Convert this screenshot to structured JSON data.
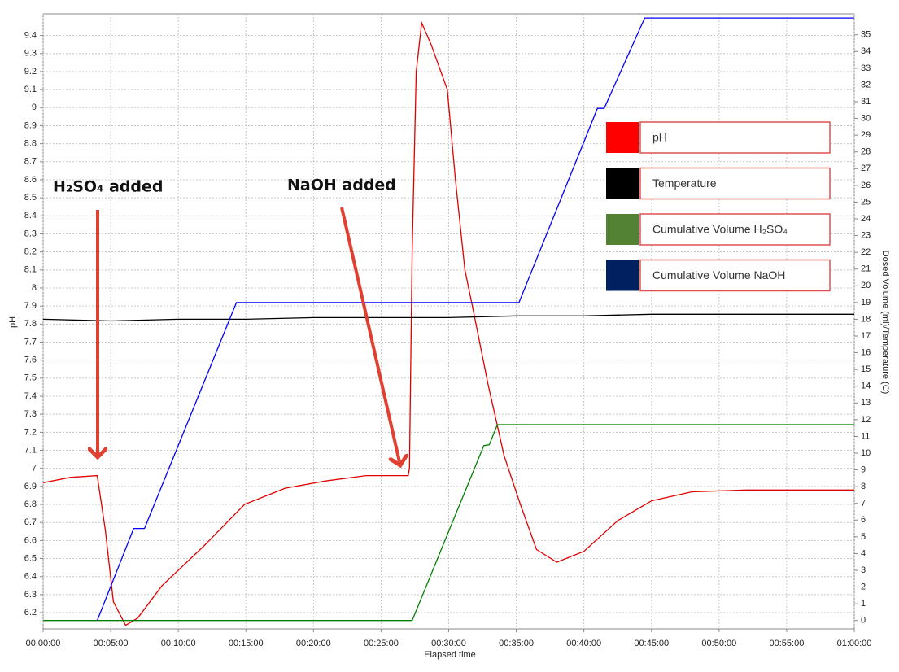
{
  "chart_data": {
    "type": "line",
    "x_label": "Elapsed time",
    "y_label": "pH",
    "y2_label": "Dosed Volume (ml)/Temperature (C)",
    "annotations": [
      "H₂SO₄ added",
      "NaOH added"
    ],
    "xlim": [
      0,
      60
    ],
    "xticks": [
      {
        "value": 0,
        "label": "00:00:00"
      },
      {
        "value": 5,
        "label": "00:05:00"
      },
      {
        "value": 10,
        "label": "00:10:00"
      },
      {
        "value": 15,
        "label": "00:15:00"
      },
      {
        "value": 20,
        "label": "00:20:00"
      },
      {
        "value": 25,
        "label": "00:25:00"
      },
      {
        "value": 30,
        "label": "00:30:00"
      },
      {
        "value": 35,
        "label": "00:35:00"
      },
      {
        "value": 40,
        "label": "00:40:00"
      },
      {
        "value": 45,
        "label": "00:45:00"
      },
      {
        "value": 50,
        "label": "00:50:00"
      },
      {
        "value": 55,
        "label": "00:55:00"
      },
      {
        "value": 60,
        "label": "01:00:00"
      }
    ],
    "ylim": [
      6.11,
      9.52
    ],
    "yticks": [
      6.2,
      6.3,
      6.4,
      6.5,
      6.6,
      6.7,
      6.8,
      6.9,
      7,
      7.1,
      7.2,
      7.3,
      7.4,
      7.5,
      7.6,
      7.7,
      7.8,
      7.9,
      8,
      8.1,
      8.2,
      8.3,
      8.4,
      8.5,
      8.6,
      8.7,
      8.8,
      8.9,
      9,
      9.1,
      9.2,
      9.3,
      9.4
    ],
    "y2lim": [
      -0.5,
      36.25
    ],
    "y2ticks": [
      0,
      1,
      2,
      3,
      4,
      5,
      6,
      7,
      8,
      9,
      10,
      11,
      12,
      13,
      14,
      15,
      16,
      17,
      18,
      19,
      20,
      21,
      22,
      23,
      24,
      25,
      26,
      27,
      28,
      29,
      30,
      31,
      32,
      33,
      34,
      35
    ],
    "grid": true,
    "series": [
      {
        "name": "pH",
        "color": "#e00000",
        "legend_color": "#ff0000",
        "x": [
          0,
          2,
          4.0,
          4.6,
          5.2,
          6.1,
          7,
          8.8,
          11.9,
          14.9,
          17.9,
          20.9,
          23.9,
          27.0,
          27.1,
          27.3,
          27.6,
          28,
          28.7,
          29.9,
          30.5,
          31.2,
          31.7,
          32.9,
          34.1,
          35.3,
          36.5,
          38,
          40,
          42.5,
          45,
          48,
          52,
          60
        ],
        "values": [
          6.92,
          6.95,
          6.96,
          6.66,
          6.26,
          6.13,
          6.17,
          6.35,
          6.57,
          6.8,
          6.89,
          6.93,
          6.96,
          6.96,
          7.0,
          8.2,
          9.2,
          9.47,
          9.35,
          9.1,
          8.6,
          8.1,
          7.92,
          7.47,
          7.07,
          6.8,
          6.55,
          6.48,
          6.54,
          6.71,
          6.82,
          6.87,
          6.88,
          6.88
        ]
      },
      {
        "name": "Temperature",
        "color": "#000000",
        "legend_color": "#000000",
        "axis": "y2",
        "x": [
          0,
          5,
          10,
          15,
          20,
          25,
          30,
          35,
          40,
          45,
          50,
          55,
          60
        ],
        "values": [
          18.0,
          17.9,
          18.0,
          18.0,
          18.1,
          18.1,
          18.1,
          18.2,
          18.2,
          18.3,
          18.3,
          18.3,
          18.3
        ]
      },
      {
        "name": "Cumulative Volume H₂SO₄",
        "color": "#008000",
        "legend_color": "#548235",
        "axis": "y2",
        "x": [
          0,
          27.3,
          32.6,
          33.0,
          33.6,
          60
        ],
        "values": [
          0,
          0,
          10.45,
          10.5,
          11.7,
          11.7
        ]
      },
      {
        "name": "Cumulative Volume NaOH",
        "color": "#0000ff",
        "legend_color": "#002060",
        "axis": "y2",
        "x": [
          4.0,
          6.7,
          7.5,
          14.3,
          35.2,
          41.0,
          41.5,
          44.5,
          60
        ],
        "values": [
          0,
          5.5,
          5.5,
          19,
          19,
          30.6,
          30.6,
          36,
          36
        ]
      }
    ]
  }
}
